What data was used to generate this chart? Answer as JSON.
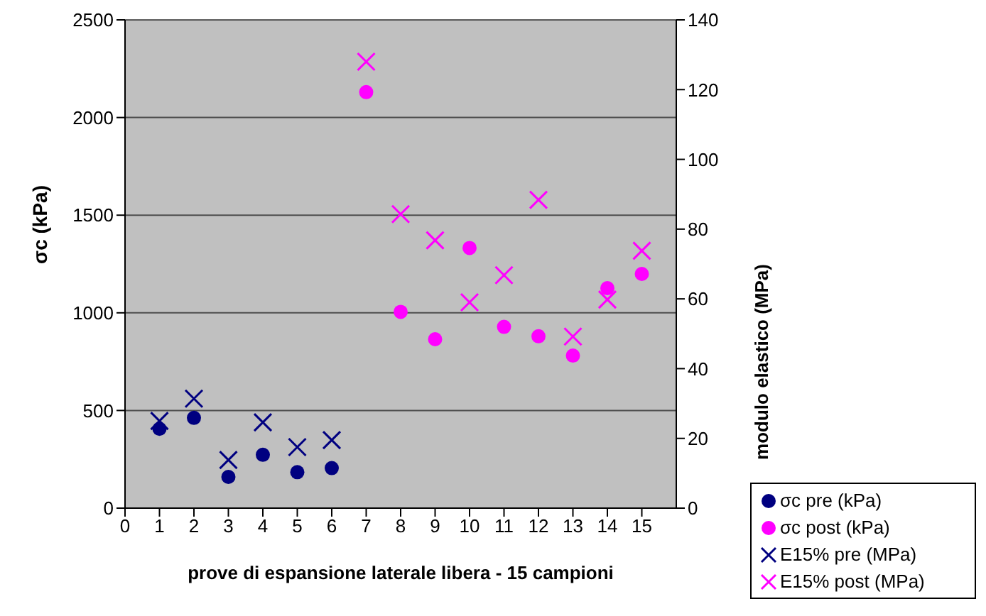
{
  "chart_data": {
    "type": "scatter",
    "xlabel": "prove di espansione laterale libera - 15 campioni",
    "ylabel": "σc (kPa)",
    "y2label": "modulo elastico (MPa)",
    "xlim": [
      0,
      16
    ],
    "xticks": [
      0,
      1,
      2,
      3,
      4,
      5,
      6,
      7,
      8,
      9,
      10,
      11,
      12,
      13,
      14,
      15
    ],
    "ylim": [
      0,
      2500
    ],
    "yticks": [
      0,
      500,
      1000,
      1500,
      2000,
      2500
    ],
    "y2lim": [
      0,
      140
    ],
    "y2ticks": [
      0,
      20,
      40,
      60,
      80,
      100,
      120,
      140
    ],
    "grid": "y",
    "legend": "bottom right",
    "series": [
      {
        "name": "σc pre (kPa)",
        "color": "#000080",
        "marker": "circle",
        "x": [
          1,
          2,
          3,
          4,
          5,
          6
        ],
        "values": [
          406,
          462,
          160,
          273,
          184,
          205
        ]
      },
      {
        "name": "σc post (kPa)",
        "color": "#ff00ff",
        "marker": "circle",
        "x": [
          7,
          8,
          9,
          10,
          11,
          12,
          13,
          14,
          15
        ],
        "values": [
          2130,
          1005,
          865,
          1332,
          928,
          880,
          781,
          1126,
          1199
        ]
      },
      {
        "name": "E15% pre (MPa)",
        "color": "#000080",
        "marker": "cross",
        "axis": "y2",
        "x": [
          1,
          2,
          3,
          4,
          5,
          6
        ],
        "values": [
          25,
          31.4,
          13.8,
          24.6,
          17.5,
          19.5
        ]
      },
      {
        "name": "E15% post (MPa)",
        "color": "#ff00ff",
        "marker": "cross",
        "axis": "y2",
        "x": [
          7,
          8,
          9,
          10,
          11,
          12,
          13,
          14,
          15
        ],
        "values": [
          128,
          84.3,
          76.8,
          59,
          66.8,
          88.4,
          49.2,
          59.8,
          73.8
        ]
      }
    ]
  }
}
